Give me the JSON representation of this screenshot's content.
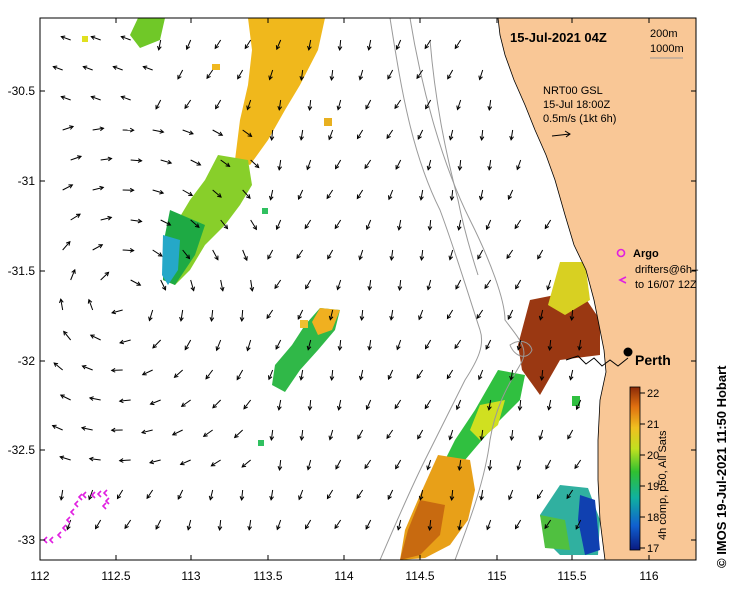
{
  "map": {
    "timestamp_title": "15-Jul-2021 04Z",
    "lon_ticks": [
      "112",
      "112.5",
      "113",
      "113.5",
      "114",
      "114.5",
      "115",
      "115.5",
      "116"
    ],
    "lat_ticks": [
      "-30.5",
      "-31",
      "-31.5",
      "-32",
      "-32.5",
      "-33"
    ],
    "isobaths": {
      "shallow": "200m",
      "deep": "1000m"
    },
    "current_legend": {
      "line1": "NRT00 GSL",
      "line2": "15-Jul 18:00Z",
      "line3": "0.5m/s (1kt 6h)"
    },
    "argo_label": "Argo",
    "drifters_line1": "drifters@6h–",
    "drifters_line2": "to 16/07 12Z",
    "city": "Perth",
    "colorbar": {
      "ticks": [
        "22",
        "21",
        "20",
        "19",
        "18",
        "17"
      ],
      "caption": "4h comp, p50, All Sats"
    },
    "credit": "©  IMOS 19-Jul-2021 11:50 Hobart",
    "colors": {
      "land": "#f9c796",
      "isobath": "#9a9a9a",
      "arrow": "#000000",
      "drifter": "#e020e0"
    }
  }
}
